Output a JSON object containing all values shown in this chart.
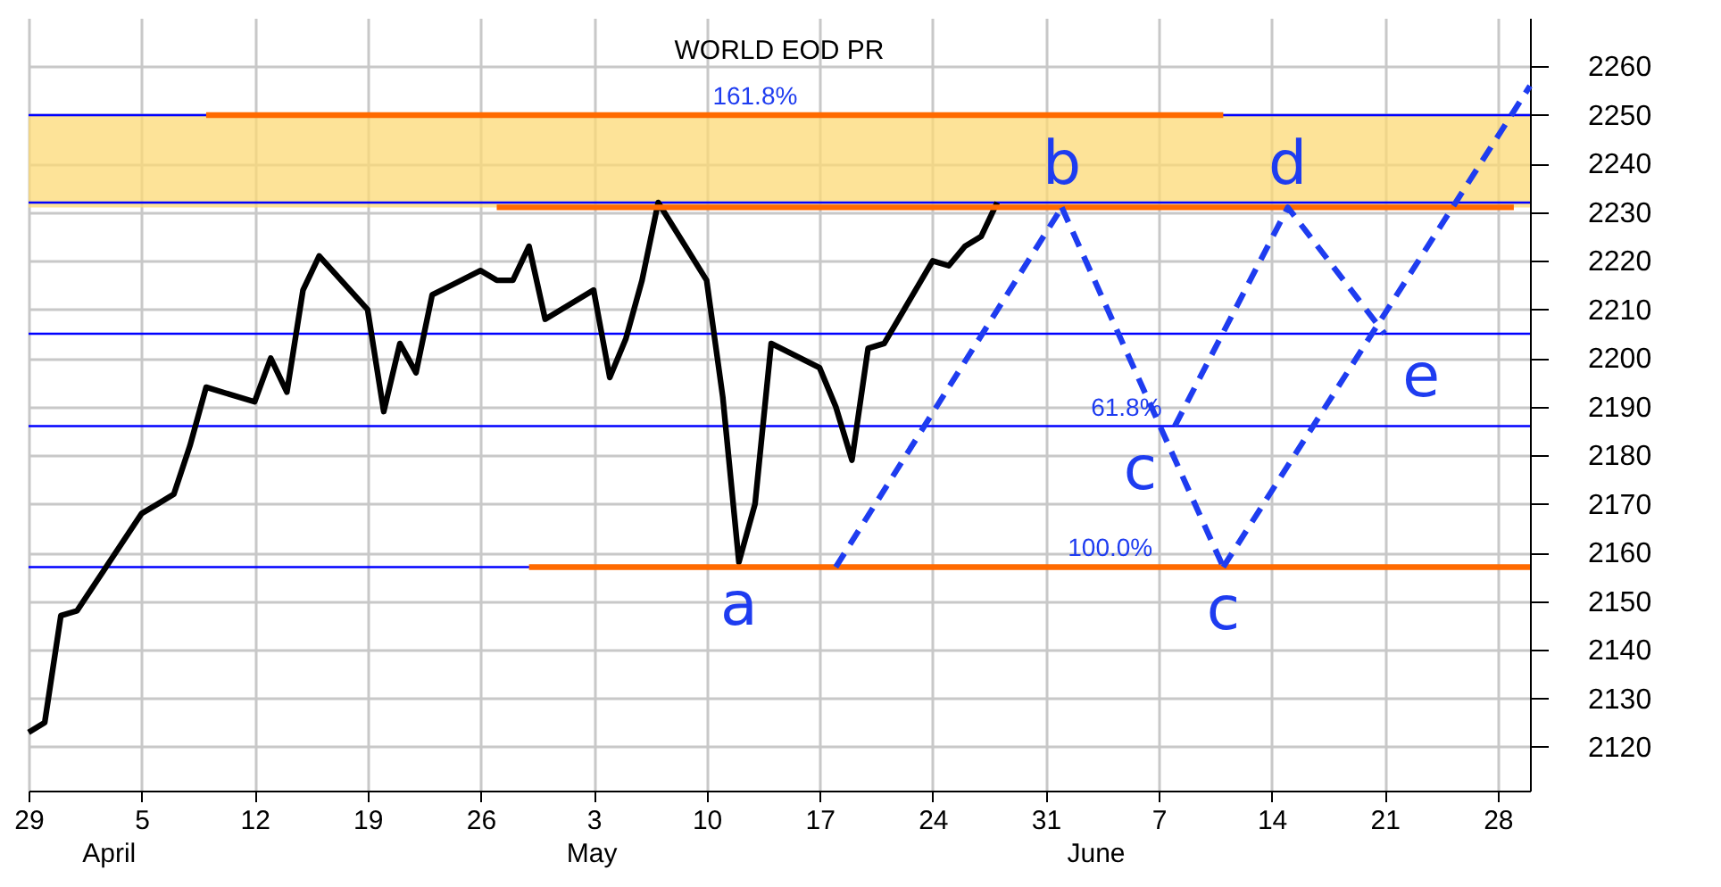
{
  "chart_data": {
    "type": "line",
    "title": "WORLD EOD PR",
    "xlim": [
      "--03-29",
      "--06-30"
    ],
    "xticks": [
      {
        "value": "--03-29",
        "label": "29"
      },
      {
        "value": "--04-05",
        "label": "5"
      },
      {
        "value": "--04-12",
        "label": "12"
      },
      {
        "value": "--04-19",
        "label": "19"
      },
      {
        "value": "--04-26",
        "label": "26"
      },
      {
        "value": "--05-03",
        "label": "3"
      },
      {
        "value": "--05-10",
        "label": "10"
      },
      {
        "value": "--05-17",
        "label": "17"
      },
      {
        "value": "--05-24",
        "label": "24"
      },
      {
        "value": "--05-31",
        "label": "31"
      },
      {
        "value": "--06-07",
        "label": "7"
      },
      {
        "value": "--06-14",
        "label": "14"
      },
      {
        "value": "--06-21",
        "label": "21"
      },
      {
        "value": "--06-28",
        "label": "28"
      }
    ],
    "ylim": [
      2111,
      2270
    ],
    "yticks": [
      2120,
      2130,
      2140,
      2150,
      2160,
      2170,
      2180,
      2190,
      2200,
      2210,
      2220,
      2230,
      2240,
      2250,
      2260
    ],
    "grid": true,
    "series": [
      {
        "color": "#000000",
        "line_style": "solid",
        "x": [
          "--03-29",
          "--03-30",
          "--03-31",
          "--04-01",
          "--04-05",
          "--04-06",
          "--04-07",
          "--04-08",
          "--04-09",
          "--04-12",
          "--04-13",
          "--04-14",
          "--04-15",
          "--04-16",
          "--04-19",
          "--04-20",
          "--04-21",
          "--04-22",
          "--04-23",
          "--04-26",
          "--04-27",
          "--04-28",
          "--04-29",
          "--04-30",
          "--05-03",
          "--05-04",
          "--05-05",
          "--05-06",
          "--05-07",
          "--05-10",
          "--05-11",
          "--05-12",
          "--05-13",
          "--05-14",
          "--05-17",
          "--05-18",
          "--05-19",
          "--05-20",
          "--05-21",
          "--05-24",
          "--05-25",
          "--05-26",
          "--05-27",
          "--05-28"
        ],
        "values": [
          2123,
          2125,
          2147,
          2148,
          2168,
          2170,
          2172,
          2182,
          2194,
          2191,
          2200,
          2193,
          2214,
          2221,
          2210,
          2189,
          2203,
          2197,
          2213,
          2218,
          2216,
          2216,
          2223,
          2208,
          2214,
          2196,
          2204,
          2216,
          2232,
          2216,
          2192,
          2158,
          2170,
          2203,
          2198,
          2190,
          2179,
          2202,
          2203,
          2220,
          2219,
          2223,
          2225,
          2232
        ]
      },
      {
        "color": "#ff6a00",
        "line_style": "solid",
        "x": [
          "--04-09",
          "--06-11"
        ],
        "values": [
          2250,
          2250
        ]
      },
      {
        "color": "#ff6a00",
        "line_style": "solid",
        "x": [
          "--04-27",
          "--06-29"
        ],
        "values": [
          2231,
          2231
        ]
      },
      {
        "color": "#ff6a00",
        "line_style": "solid",
        "x": [
          "--04-29",
          "--06-30"
        ],
        "values": [
          2157,
          2157
        ]
      },
      {
        "color": "#1e3cf0",
        "line_style": "dashed",
        "x": [
          "--05-18",
          "--06-01"
        ],
        "values": [
          2157,
          2231
        ]
      },
      {
        "color": "#1e3cf0",
        "line_style": "dashed",
        "x": [
          "--06-01",
          "--06-11"
        ],
        "values": [
          2231,
          2157
        ]
      },
      {
        "color": "#1e3cf0",
        "line_style": "dashed",
        "x": [
          "--06-08",
          "--06-15",
          "--06-21"
        ],
        "values": [
          2186,
          2231,
          2205
        ]
      },
      {
        "color": "#1e3cf0",
        "line_style": "dashed",
        "x": [
          "--06-11",
          "--06-30"
        ],
        "values": [
          2157,
          2256
        ]
      }
    ],
    "ref_lines": [
      {
        "axis": "y",
        "value": 2250,
        "color": "#0000ff"
      },
      {
        "axis": "y",
        "value": 2232,
        "color": "#0000ff"
      },
      {
        "axis": "y",
        "value": 2205,
        "color": "#0000ff"
      },
      {
        "axis": "y",
        "value": 2186,
        "color": "#0000ff"
      },
      {
        "axis": "y",
        "value": 2157,
        "color": "#0000ff"
      }
    ],
    "bands": [
      {
        "axis": "y",
        "from": 2231,
        "to": 2250,
        "color": "#fcd975"
      }
    ],
    "annotations": [
      {
        "text": "a",
        "x": "--05-12",
        "y": 2158
      },
      {
        "text": "b",
        "x": "--06-01",
        "y": 2231
      },
      {
        "text": "c",
        "x": "--06-08",
        "y": 2186
      },
      {
        "text": "c",
        "x": "--06-11",
        "y": 2157
      },
      {
        "text": "d",
        "x": "--06-15",
        "y": 2231
      },
      {
        "text": "e",
        "x": "--06-21",
        "y": 2205
      },
      {
        "text": "161.8%",
        "x": "--05-13",
        "y": 2250
      },
      {
        "text": "61.8%",
        "x": "--06-05",
        "y": 2186
      },
      {
        "text": "100.0%",
        "x": "--06-04",
        "y": 2157
      },
      "April",
      "May",
      "June"
    ]
  }
}
